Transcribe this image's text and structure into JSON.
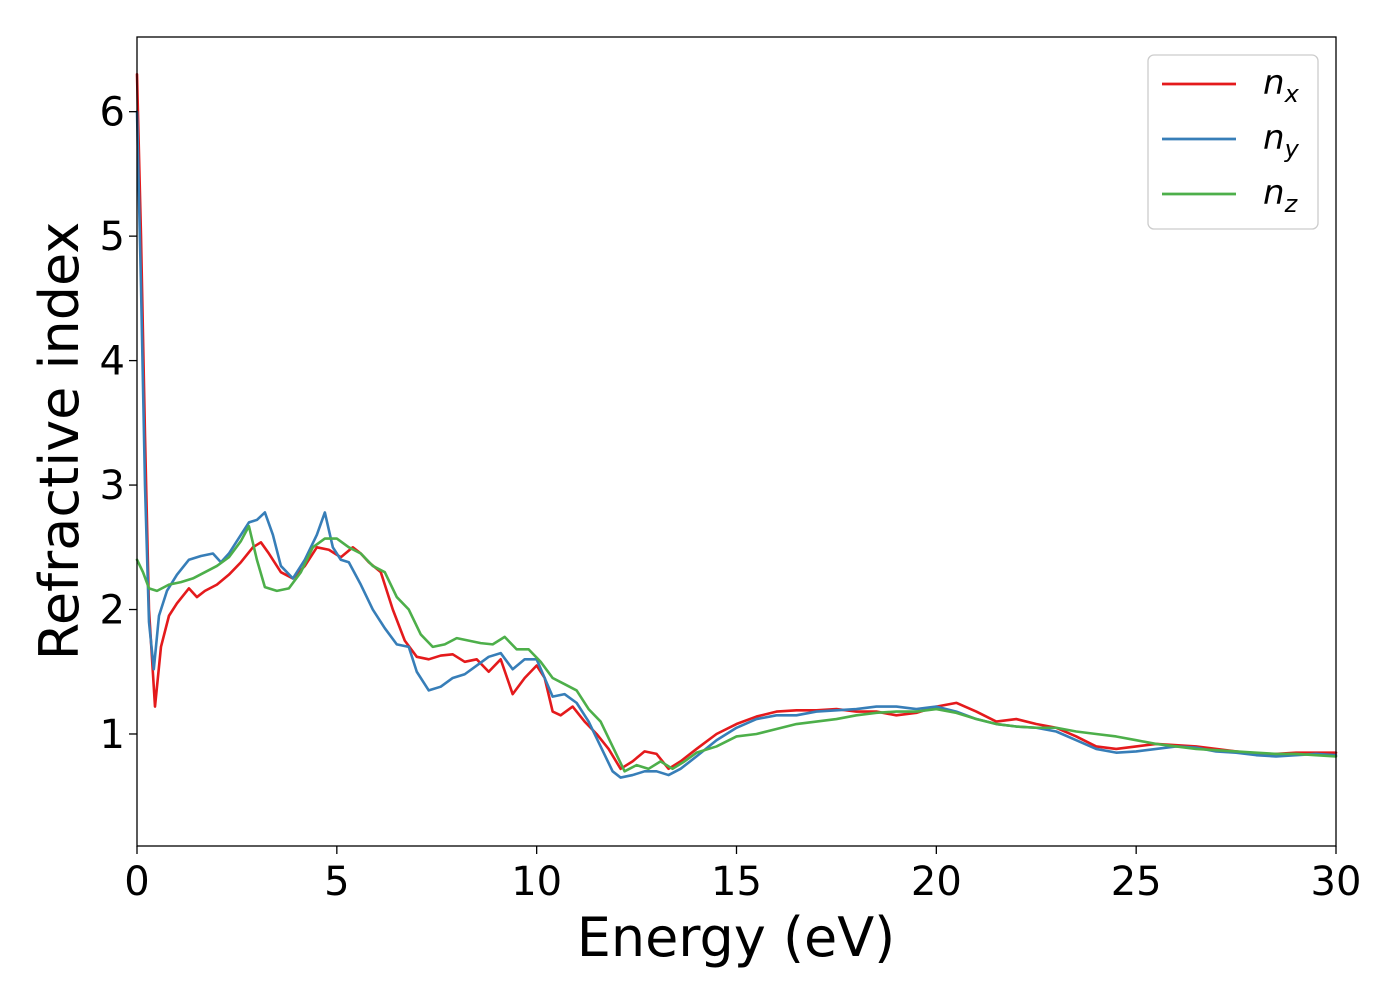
{
  "chart_data": {
    "type": "line",
    "title": "",
    "xlabel": "Energy (eV)",
    "ylabel": "Refractive index",
    "xlim": [
      0,
      30
    ],
    "ylim": [
      0.1,
      6.6
    ],
    "xticks": [
      0,
      5,
      10,
      15,
      20,
      25,
      30
    ],
    "yticks": [
      1,
      2,
      3,
      4,
      5,
      6
    ],
    "grid": false,
    "legend_position": "top-right",
    "series": [
      {
        "name": "n",
        "subscript": "x",
        "color": "#e41a1c",
        "x": [
          0,
          0.1,
          0.2,
          0.3,
          0.45,
          0.6,
          0.8,
          1.0,
          1.3,
          1.5,
          1.7,
          2.0,
          2.3,
          2.6,
          2.9,
          3.1,
          3.3,
          3.6,
          3.9,
          4.2,
          4.5,
          4.8,
          5.1,
          5.4,
          5.6,
          5.8,
          6.1,
          6.4,
          6.7,
          7.0,
          7.3,
          7.6,
          7.9,
          8.2,
          8.5,
          8.8,
          9.1,
          9.4,
          9.7,
          10.0,
          10.2,
          10.4,
          10.6,
          10.9,
          11.2,
          11.5,
          11.8,
          12.1,
          12.4,
          12.7,
          13.0,
          13.3,
          13.6,
          14.0,
          14.5,
          15.0,
          15.5,
          16.0,
          16.5,
          17.0,
          17.5,
          18.0,
          18.5,
          19.0,
          19.5,
          20.0,
          20.5,
          21.0,
          21.5,
          22.0,
          22.5,
          23.0,
          23.5,
          24.0,
          24.5,
          25.0,
          25.5,
          26.0,
          26.5,
          27.0,
          27.5,
          28.0,
          28.5,
          29.0,
          29.5,
          30.0
        ],
        "values": [
          6.3,
          5.0,
          3.4,
          2.0,
          1.22,
          1.7,
          1.95,
          2.05,
          2.17,
          2.1,
          2.15,
          2.2,
          2.28,
          2.38,
          2.5,
          2.54,
          2.45,
          2.3,
          2.25,
          2.35,
          2.5,
          2.48,
          2.42,
          2.5,
          2.45,
          2.38,
          2.3,
          2.0,
          1.75,
          1.62,
          1.6,
          1.63,
          1.64,
          1.58,
          1.6,
          1.5,
          1.6,
          1.32,
          1.45,
          1.55,
          1.45,
          1.18,
          1.15,
          1.22,
          1.1,
          1.0,
          0.88,
          0.72,
          0.78,
          0.86,
          0.84,
          0.72,
          0.78,
          0.88,
          1.0,
          1.08,
          1.14,
          1.18,
          1.19,
          1.19,
          1.2,
          1.18,
          1.18,
          1.15,
          1.17,
          1.22,
          1.25,
          1.18,
          1.1,
          1.12,
          1.08,
          1.05,
          0.98,
          0.9,
          0.88,
          0.9,
          0.92,
          0.91,
          0.9,
          0.88,
          0.86,
          0.84,
          0.84,
          0.85,
          0.85,
          0.85
        ]
      },
      {
        "name": "n",
        "subscript": "y",
        "color": "#377eb8",
        "x": [
          0,
          0.1,
          0.2,
          0.3,
          0.42,
          0.55,
          0.75,
          1.0,
          1.3,
          1.6,
          1.9,
          2.1,
          2.3,
          2.5,
          2.8,
          3.0,
          3.2,
          3.4,
          3.6,
          3.9,
          4.2,
          4.5,
          4.7,
          4.9,
          5.1,
          5.3,
          5.6,
          5.9,
          6.2,
          6.5,
          6.8,
          7.0,
          7.3,
          7.6,
          7.9,
          8.2,
          8.5,
          8.8,
          9.1,
          9.4,
          9.7,
          10.0,
          10.2,
          10.4,
          10.7,
          11.0,
          11.3,
          11.6,
          11.9,
          12.1,
          12.4,
          12.7,
          13.0,
          13.3,
          13.6,
          14.0,
          14.5,
          15.0,
          15.5,
          16.0,
          16.5,
          17.0,
          17.5,
          18.0,
          18.5,
          19.0,
          19.5,
          20.0,
          20.5,
          21.0,
          21.5,
          22.0,
          22.5,
          23.0,
          23.5,
          24.0,
          24.5,
          25.0,
          25.5,
          26.0,
          26.5,
          27.0,
          27.5,
          28.0,
          28.5,
          29.0,
          29.5,
          30.0
        ],
        "values": [
          6.0,
          4.6,
          3.0,
          1.9,
          1.52,
          1.95,
          2.15,
          2.28,
          2.4,
          2.43,
          2.45,
          2.38,
          2.45,
          2.55,
          2.7,
          2.72,
          2.78,
          2.6,
          2.35,
          2.25,
          2.4,
          2.6,
          2.78,
          2.5,
          2.4,
          2.38,
          2.2,
          2.0,
          1.85,
          1.72,
          1.7,
          1.5,
          1.35,
          1.38,
          1.45,
          1.48,
          1.55,
          1.62,
          1.65,
          1.52,
          1.6,
          1.6,
          1.45,
          1.3,
          1.32,
          1.25,
          1.1,
          0.9,
          0.7,
          0.65,
          0.67,
          0.7,
          0.7,
          0.67,
          0.72,
          0.82,
          0.95,
          1.05,
          1.12,
          1.15,
          1.15,
          1.18,
          1.19,
          1.2,
          1.22,
          1.22,
          1.2,
          1.22,
          1.18,
          1.12,
          1.08,
          1.06,
          1.05,
          1.02,
          0.95,
          0.88,
          0.85,
          0.86,
          0.88,
          0.9,
          0.89,
          0.86,
          0.85,
          0.83,
          0.82,
          0.83,
          0.84,
          0.83
        ]
      },
      {
        "name": "n",
        "subscript": "z",
        "color": "#4daf4a",
        "x": [
          0,
          0.15,
          0.3,
          0.5,
          0.8,
          1.1,
          1.4,
          1.7,
          2.0,
          2.3,
          2.6,
          2.8,
          3.0,
          3.2,
          3.5,
          3.8,
          4.1,
          4.4,
          4.7,
          5.0,
          5.3,
          5.6,
          5.9,
          6.2,
          6.5,
          6.8,
          7.1,
          7.4,
          7.7,
          8.0,
          8.3,
          8.6,
          8.9,
          9.2,
          9.5,
          9.8,
          10.1,
          10.4,
          10.7,
          11.0,
          11.3,
          11.6,
          11.9,
          12.2,
          12.5,
          12.8,
          13.1,
          13.4,
          13.7,
          14.0,
          14.5,
          15.0,
          15.5,
          16.0,
          16.5,
          17.0,
          17.5,
          18.0,
          18.5,
          19.0,
          19.5,
          20.0,
          20.5,
          21.0,
          21.5,
          22.0,
          22.5,
          23.0,
          23.5,
          24.0,
          24.5,
          25.0,
          25.5,
          26.0,
          26.5,
          27.0,
          27.5,
          28.0,
          28.5,
          29.0,
          29.5,
          30.0
        ],
        "values": [
          2.4,
          2.3,
          2.17,
          2.15,
          2.2,
          2.22,
          2.25,
          2.3,
          2.35,
          2.42,
          2.55,
          2.67,
          2.4,
          2.18,
          2.15,
          2.17,
          2.3,
          2.5,
          2.57,
          2.57,
          2.5,
          2.45,
          2.35,
          2.3,
          2.1,
          2.0,
          1.8,
          1.7,
          1.72,
          1.77,
          1.75,
          1.73,
          1.72,
          1.78,
          1.68,
          1.68,
          1.58,
          1.45,
          1.4,
          1.35,
          1.2,
          1.1,
          0.9,
          0.7,
          0.75,
          0.72,
          0.78,
          0.72,
          0.78,
          0.85,
          0.9,
          0.98,
          1.0,
          1.04,
          1.08,
          1.1,
          1.12,
          1.15,
          1.17,
          1.18,
          1.18,
          1.2,
          1.17,
          1.12,
          1.08,
          1.06,
          1.05,
          1.05,
          1.02,
          1.0,
          0.98,
          0.95,
          0.92,
          0.9,
          0.88,
          0.87,
          0.86,
          0.85,
          0.84,
          0.84,
          0.83,
          0.82
        ]
      }
    ]
  }
}
